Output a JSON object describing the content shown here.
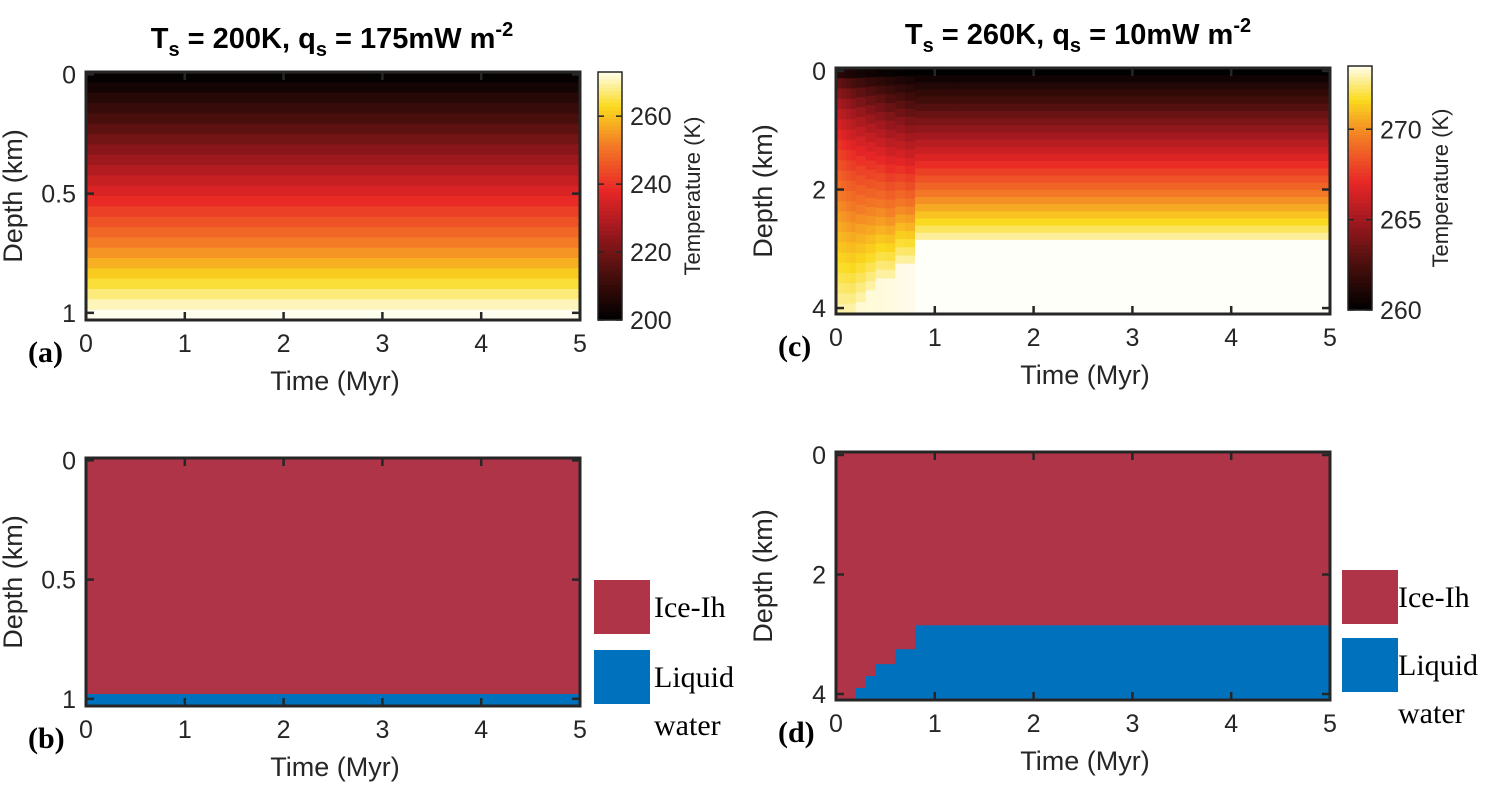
{
  "chart_data": [
    {
      "panel": "(a)",
      "type": "heatmap",
      "title": "T_s = 200K, q_s = 175mW m^-2",
      "title_parts": {
        "t": "T",
        "t_sub": "s",
        "t_val": " = 200K, ",
        "q": "q",
        "q_sub": "s",
        "q_val": " = 175mW m",
        "q_sup": "-2"
      },
      "xlabel": "Time (Myr)",
      "ylabel": "Depth (km)",
      "xlim": [
        0,
        5
      ],
      "ylim": [
        0,
        1
      ],
      "xticks": [
        0,
        1,
        2,
        3,
        4,
        5
      ],
      "yticks": [
        0,
        0.5,
        1
      ],
      "x_tick_labels": [
        "0",
        "1",
        "2",
        "3",
        "4",
        "5"
      ],
      "y_tick_labels": [
        "0",
        "0.5",
        "1"
      ],
      "colorbar": {
        "label": "Temperature (K)",
        "range": [
          200,
          273
        ],
        "ticks": [
          200,
          220,
          240,
          260
        ],
        "tick_labels": [
          "200",
          "220",
          "240",
          "260"
        ]
      },
      "field": {
        "surface_temperature_K": 200,
        "base_temperature_K": 273,
        "profile": "linear in depth, steady through time",
        "depth_layers": 24
      }
    },
    {
      "panel": "(b)",
      "type": "heatmap",
      "xlabel": "Time (Myr)",
      "ylabel": "Depth (km)",
      "xlim": [
        0,
        5
      ],
      "ylim": [
        0,
        1
      ],
      "xticks": [
        0,
        1,
        2,
        3,
        4,
        5
      ],
      "yticks": [
        0,
        0.5,
        1
      ],
      "x_tick_labels": [
        "0",
        "1",
        "2",
        "3",
        "4",
        "5"
      ],
      "y_tick_labels": [
        "0",
        "0.5",
        "1"
      ],
      "phases": [
        {
          "name": "Ice-Ih",
          "color": "#B03448"
        },
        {
          "name": "Liquid water",
          "color": "#0072BD"
        }
      ],
      "legend": {
        "placement": "right",
        "entries": [
          "Ice-Ih",
          "Liquid water"
        ]
      },
      "liquid_boundary": {
        "time_Myr": [
          0,
          5
        ],
        "depth_km": [
          0.98,
          0.98
        ]
      }
    },
    {
      "panel": "(c)",
      "type": "heatmap",
      "title": "T_s = 260K, q_s = 10mW m^-2",
      "title_parts": {
        "t": "T",
        "t_sub": "s",
        "t_val": " = 260K, ",
        "q": "q",
        "q_sub": "s",
        "q_val": " = 10mW m",
        "q_sup": "-2"
      },
      "xlabel": "Time (Myr)",
      "ylabel": "Depth (km)",
      "xlim": [
        0,
        5
      ],
      "ylim": [
        0,
        4.1
      ],
      "xticks": [
        0,
        1,
        2,
        3,
        4,
        5
      ],
      "yticks": [
        0,
        2,
        4
      ],
      "x_tick_labels": [
        "0",
        "1",
        "2",
        "3",
        "4",
        "5"
      ],
      "y_tick_labels": [
        "0",
        "2",
        "4"
      ],
      "colorbar": {
        "label": "Temperature (K)",
        "range": [
          260,
          273.5
        ],
        "ticks": [
          260,
          265,
          270
        ],
        "tick_labels": [
          "260",
          "265",
          "270"
        ]
      },
      "field": {
        "surface_temperature_K": 260,
        "melting_temperature_K": 273,
        "profile": "rises with depth to the ice-water boundary; liquid below",
        "depth_layers": 24
      },
      "liquid_boundary": {
        "time_Myr": [
          0,
          0.2,
          0.3,
          0.4,
          0.6,
          0.8,
          5
        ],
        "depth_km": [
          4.1,
          3.9,
          3.7,
          3.5,
          3.25,
          2.85,
          2.85
        ]
      }
    },
    {
      "panel": "(d)",
      "type": "heatmap",
      "xlabel": "Time (Myr)",
      "ylabel": "Depth (km)",
      "xlim": [
        0,
        5
      ],
      "ylim": [
        0,
        4.1
      ],
      "xticks": [
        0,
        1,
        2,
        3,
        4,
        5
      ],
      "yticks": [
        0,
        2,
        4
      ],
      "x_tick_labels": [
        "0",
        "1",
        "2",
        "3",
        "4",
        "5"
      ],
      "y_tick_labels": [
        "0",
        "2",
        "4"
      ],
      "phases": [
        {
          "name": "Ice-Ih",
          "color": "#B03448"
        },
        {
          "name": "Liquid water",
          "color": "#0072BD"
        }
      ],
      "legend": {
        "placement": "right",
        "entries": [
          "Ice-Ih",
          "Liquid water"
        ]
      },
      "liquid_boundary": {
        "time_Myr": [
          0,
          0.2,
          0.3,
          0.4,
          0.6,
          0.8,
          5
        ],
        "depth_km": [
          4.1,
          3.9,
          3.7,
          3.5,
          3.25,
          2.85,
          2.85
        ]
      }
    }
  ],
  "legend_text": {
    "ice": "Ice-Ih",
    "liquid_line1": "Liquid",
    "liquid_line2": "water"
  },
  "colors": {
    "ice": "#B03448",
    "liquid": "#0072BD",
    "melt_white": "#FFFFFA"
  }
}
